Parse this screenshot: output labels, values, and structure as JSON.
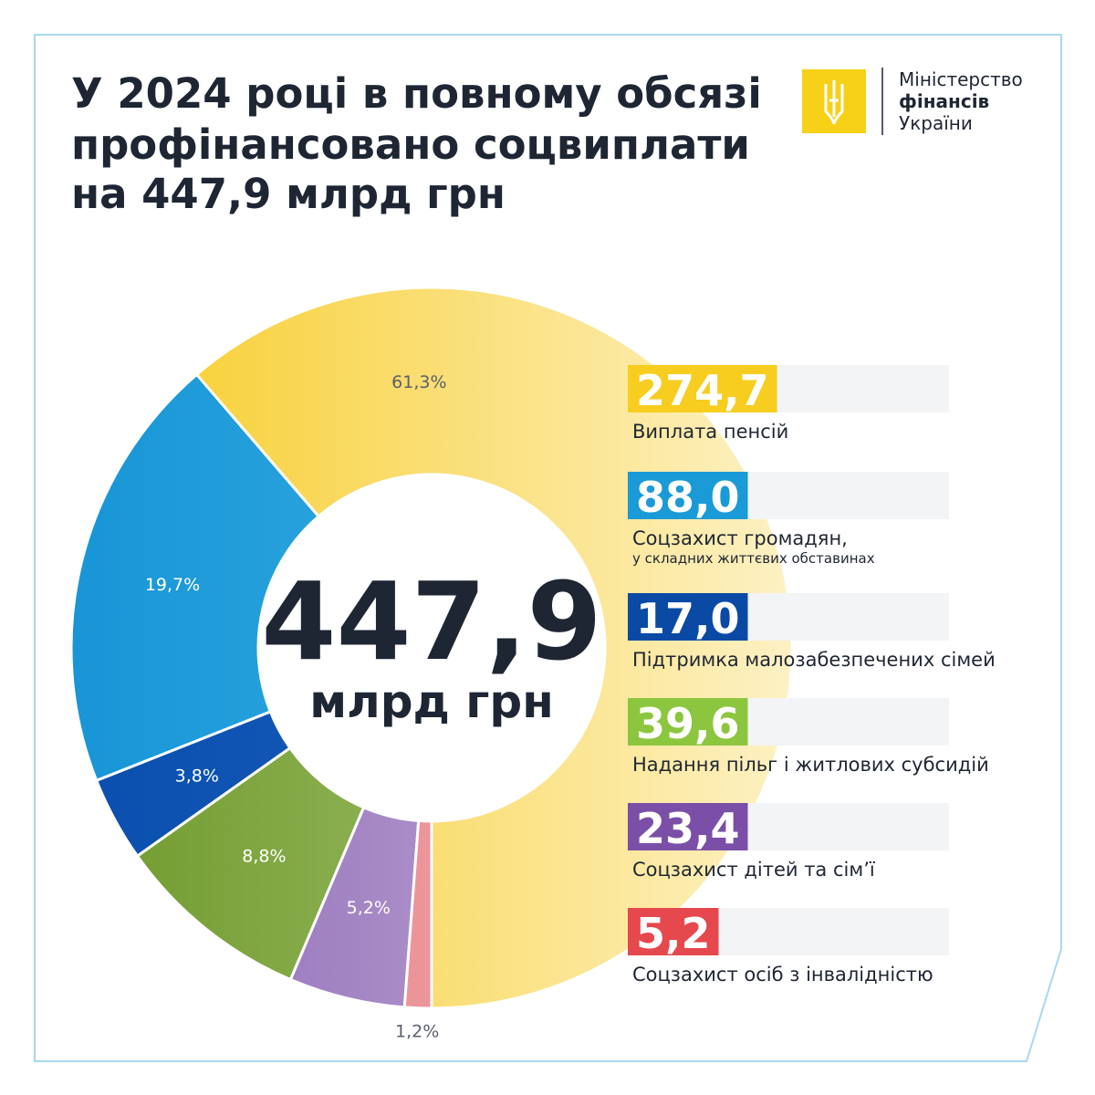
{
  "brand": {
    "lines": [
      "Міністерство",
      "фінансів",
      "України"
    ]
  },
  "chart_data": {
    "type": "donut",
    "title": [
      "У 2024 році в повному обсязі",
      "профінансовано соцвиплати",
      "на 447,9 млрд грн"
    ],
    "total_label": "447,9",
    "total_unit": "млрд грн",
    "categories": [
      "Виплата пенсій",
      "Соцзахист громадян,",
      "Підтримка малозабезпечених сімей",
      "Надання пільг і житлових субсидій",
      "Соцзахист дітей та сім’ї",
      "Соцзахист осіб з інвалідністю"
    ],
    "category_notes": [
      null,
      "у складних життєвих обставинах",
      null,
      null,
      null,
      null
    ],
    "values": [
      61.3,
      19.7,
      3.8,
      8.8,
      5.2,
      1.2
    ],
    "value_labels": [
      "61,3%",
      "19,7%",
      "3,8%",
      "8,8%",
      "5,2%",
      "1,2%"
    ],
    "amounts": [
      274.7,
      88.0,
      17.0,
      39.6,
      23.4,
      5.2
    ],
    "amount_labels": [
      "274,7",
      "88,0",
      "17,0",
      "39,6",
      "23,4",
      "5,2"
    ],
    "colors": [
      [
        "#f7cb22",
        "#fdf1c4"
      ],
      [
        "#1795d6",
        "#45b9ea"
      ],
      [
        "#0a4fae",
        "#1f65c2"
      ],
      [
        "#6e992c",
        "#b3cd80"
      ],
      [
        "#8c68b3",
        "#c9b3de"
      ],
      [
        "#e8858b",
        "#f0a5aa"
      ]
    ],
    "amount_colors": [
      "#f7cd1f",
      "#1a9ad6",
      "#0a4aa5",
      "#8cc63f",
      "#7b4fa8",
      "#e5484d"
    ]
  }
}
